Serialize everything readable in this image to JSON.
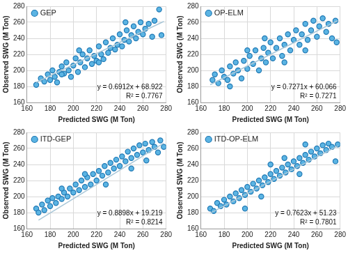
{
  "chart_data": [
    {
      "type": "scatter",
      "x_label": "Predicted SWG (M Ton)",
      "y_label": "Observed SWG (M Ton)",
      "xlim": [
        160,
        280
      ],
      "xticks": [
        160,
        180,
        200,
        220,
        240,
        260,
        280
      ],
      "ylim": [
        160,
        280
      ],
      "yticks": [
        160,
        180,
        200,
        220,
        240,
        260,
        280
      ],
      "grid": true,
      "legend": "top-left",
      "annotations": [
        "y = 0.6912x + 68.922",
        "R² = 0.7767"
      ],
      "series": [
        {
          "name": "GEP",
          "color": "#5bb4e3",
          "marker": "circle",
          "x": [
            168,
            172,
            175,
            178,
            180,
            182,
            184,
            186,
            188,
            190,
            192,
            194,
            196,
            198,
            200,
            202,
            204,
            206,
            208,
            210,
            212,
            214,
            216,
            218,
            220,
            222,
            224,
            226,
            228,
            230,
            232,
            234,
            236,
            238,
            240,
            242,
            244,
            246,
            248,
            250,
            252,
            254,
            256,
            258,
            260,
            262,
            265,
            268,
            270,
            274,
            276,
            222,
            205,
            190,
            245
          ],
          "values": [
            182,
            190,
            186,
            195,
            188,
            200,
            192,
            185,
            198,
            205,
            196,
            210,
            200,
            192,
            206,
            215,
            198,
            210,
            220,
            204,
            215,
            225,
            208,
            218,
            212,
            230,
            220,
            214,
            235,
            222,
            228,
            240,
            226,
            232,
            245,
            230,
            238,
            250,
            236,
            244,
            255,
            240,
            248,
            260,
            245,
            252,
            258,
            242,
            262,
            276,
            244,
            210,
            225,
            195,
            260
          ]
        }
      ],
      "trend_line": {
        "color": "#a9c7d8",
        "x": [
          168,
          278
        ],
        "values": [
          185.0,
          261.1
        ]
      }
    },
    {
      "type": "scatter",
      "x_label": "Predicted SWG (M Ton)",
      "y_label": "Observed SWG (M Ton)",
      "xlim": [
        160,
        280
      ],
      "xticks": [
        160,
        180,
        200,
        220,
        240,
        260,
        280
      ],
      "ylim": [
        160,
        280
      ],
      "yticks": [
        160,
        180,
        200,
        220,
        240,
        260,
        280
      ],
      "grid": true,
      "legend": "top-left",
      "annotations": [
        "y = 0.7271x + 60.066",
        "R² = 0.7271"
      ],
      "series": [
        {
          "name": "OP-ELM",
          "color": "#5bb4e3",
          "marker": "circle",
          "x": [
            170,
            172,
            175,
            178,
            180,
            183,
            185,
            188,
            190,
            192,
            195,
            197,
            200,
            202,
            205,
            207,
            210,
            212,
            214,
            216,
            218,
            220,
            222,
            225,
            228,
            230,
            232,
            235,
            237,
            240,
            242,
            245,
            247,
            250,
            252,
            255,
            257,
            260,
            262,
            265,
            268,
            270,
            273,
            276,
            277,
            215,
            200,
            185,
            232,
            250
          ],
          "values": [
            188,
            195,
            184,
            200,
            192,
            188,
            205,
            196,
            210,
            200,
            190,
            212,
            202,
            218,
            208,
            225,
            200,
            215,
            228,
            210,
            222,
            235,
            215,
            228,
            240,
            218,
            232,
            245,
            225,
            238,
            250,
            232,
            245,
            258,
            238,
            250,
            262,
            242,
            255,
            265,
            248,
            258,
            240,
            262,
            235,
            240,
            225,
            180,
            210,
            225
          ]
        }
      ],
      "trend_line": {
        "color": "#a9c7d8",
        "x": [
          168,
          278
        ],
        "values": [
          182.2,
          262.2
        ]
      }
    },
    {
      "type": "scatter",
      "x_label": "Predicted SWG (M Ton)",
      "y_label": "Observed SWG (M Ton)",
      "xlim": [
        160,
        280
      ],
      "xticks": [
        160,
        180,
        200,
        220,
        240,
        260,
        280
      ],
      "ylim": [
        160,
        280
      ],
      "yticks": [
        160,
        180,
        200,
        220,
        240,
        260,
        280
      ],
      "grid": true,
      "legend": "top-left",
      "annotations": [
        "y = 0.8898x + 19.219",
        "R² = 0.8214"
      ],
      "series": [
        {
          "name": "ITD-GEP",
          "color": "#5bb4e3",
          "marker": "circle",
          "x": [
            168,
            170,
            173,
            175,
            178,
            180,
            182,
            185,
            187,
            190,
            192,
            195,
            197,
            200,
            202,
            205,
            207,
            210,
            212,
            215,
            217,
            220,
            222,
            225,
            227,
            230,
            232,
            235,
            237,
            240,
            242,
            245,
            247,
            250,
            252,
            255,
            257,
            260,
            262,
            265,
            268,
            270,
            273,
            275,
            278,
            228,
            210,
            250,
            190,
            263
          ],
          "values": [
            185,
            180,
            190,
            183,
            195,
            188,
            198,
            192,
            200,
            197,
            205,
            200,
            210,
            205,
            215,
            208,
            220,
            212,
            224,
            215,
            228,
            220,
            232,
            226,
            238,
            230,
            242,
            235,
            246,
            238,
            250,
            244,
            256,
            248,
            260,
            252,
            264,
            255,
            266,
            258,
            268,
            262,
            255,
            270,
            262,
            215,
            228,
            235,
            210,
            245
          ]
        }
      ],
      "trend_line": {
        "color": "#a9c7d8",
        "x": [
          170,
          278
        ],
        "values": [
          170.5,
          266.6
        ]
      }
    },
    {
      "type": "scatter",
      "x_label": "Predicted SWG (M Ton)",
      "y_label": "Observed SWG (M Ton)",
      "xlim": [
        160,
        280
      ],
      "xticks": [
        160,
        180,
        200,
        220,
        240,
        260,
        280
      ],
      "ylim": [
        160,
        280
      ],
      "yticks": [
        160,
        180,
        200,
        220,
        240,
        260,
        280
      ],
      "grid": true,
      "legend": "top-left",
      "annotations": [
        "y = 0.7623x + 51.23",
        "R² = 0.7801"
      ],
      "series": [
        {
          "name": "ITD-OP-ELM",
          "color": "#5bb4e3",
          "marker": "circle",
          "x": [
            168,
            171,
            174,
            177,
            180,
            182,
            185,
            188,
            190,
            193,
            195,
            198,
            200,
            203,
            205,
            208,
            210,
            213,
            215,
            218,
            220,
            223,
            225,
            228,
            230,
            233,
            235,
            238,
            240,
            243,
            245,
            248,
            250,
            253,
            255,
            258,
            260,
            263,
            265,
            268,
            270,
            273,
            276,
            278,
            212,
            232,
            250,
            220,
            245,
            198
          ],
          "values": [
            185,
            182,
            192,
            188,
            196,
            190,
            200,
            194,
            204,
            198,
            208,
            202,
            212,
            206,
            216,
            210,
            220,
            214,
            224,
            218,
            228,
            222,
            232,
            226,
            236,
            230,
            240,
            234,
            244,
            238,
            248,
            242,
            252,
            246,
            256,
            250,
            260,
            254,
            264,
            258,
            266,
            262,
            244,
            265,
            200,
            248,
            265,
            240,
            228,
            185
          ]
        }
      ],
      "trend_line": {
        "color": "#a9c7d8",
        "x": [
          168,
          278
        ],
        "values": [
          179.3,
          263.1
        ]
      }
    }
  ]
}
